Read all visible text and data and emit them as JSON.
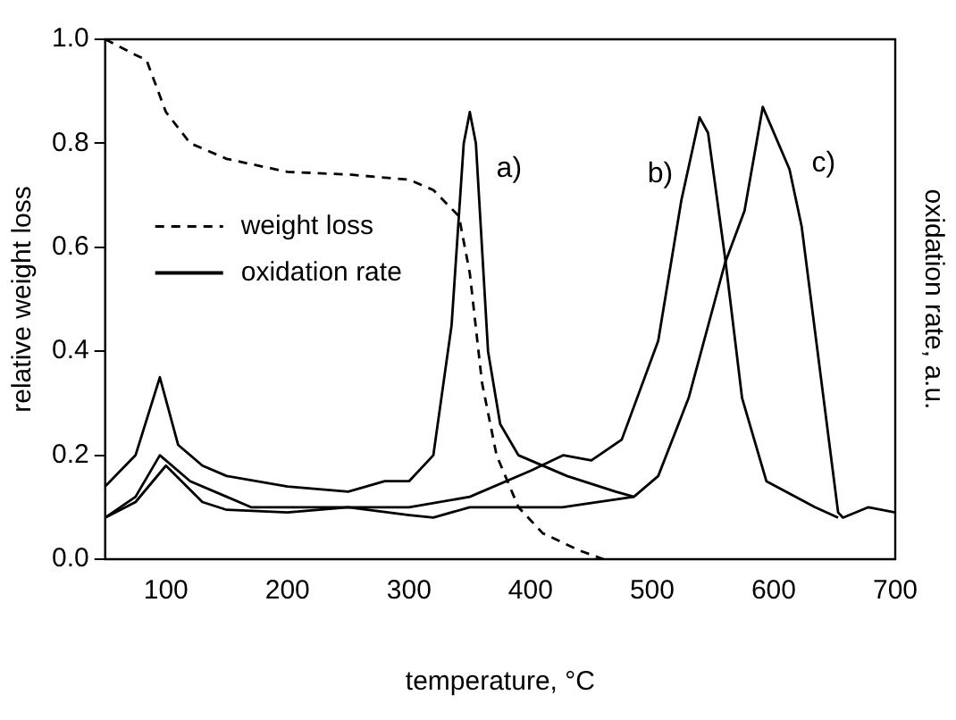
{
  "chart_data": {
    "type": "line",
    "xlabel": "temperature, °C",
    "ylabel": "relative weight loss",
    "y2label": "oxidation rate, a.u.",
    "xlim": [
      50,
      700
    ],
    "xticks": [
      100,
      200,
      300,
      400,
      500,
      600,
      700
    ],
    "ylim": [
      0,
      1.0
    ],
    "yticks": [
      {
        "value": 0,
        "label": "0.0"
      },
      0.2,
      0.4,
      0.6,
      0.8,
      {
        "value": 1,
        "label": "1.0"
      }
    ],
    "grid": false,
    "legend": "left",
    "marker": "none",
    "series": [
      {
        "name": "weight loss",
        "color": "#000000",
        "line_style": "dashed",
        "x": [
          50,
          75,
          84,
          100,
          120,
          150,
          200,
          250,
          300,
          320,
          341,
          350,
          360,
          372,
          390,
          410,
          441,
          460
        ],
        "values": [
          1.0,
          0.97,
          0.96,
          0.86,
          0.8,
          0.77,
          0.745,
          0.74,
          0.73,
          0.71,
          0.66,
          0.55,
          0.34,
          0.2,
          0.1,
          0.05,
          0.016,
          0.0
        ]
      },
      {
        "name": "oxidation rate",
        "color": "#000000",
        "line_style": "solid",
        "x": [
          50,
          75,
          95,
          110,
          130,
          150,
          200,
          250,
          280,
          300,
          320,
          335,
          345,
          350,
          355,
          365,
          375,
          390,
          430,
          470,
          485
        ],
        "values": [
          0.14,
          0.2,
          0.35,
          0.22,
          0.18,
          0.16,
          0.14,
          0.13,
          0.15,
          0.15,
          0.2,
          0.45,
          0.8,
          0.86,
          0.8,
          0.4,
          0.26,
          0.2,
          0.16,
          0.13,
          0.12
        ]
      },
      {
        "color": "#000000",
        "line_style": "solid",
        "x": [
          50,
          75,
          95,
          120,
          150,
          170,
          200,
          250,
          300,
          350,
          400,
          427,
          450,
          475,
          505,
          524,
          539,
          546,
          560,
          574,
          594,
          634,
          653
        ],
        "values": [
          0.08,
          0.12,
          0.2,
          0.15,
          0.12,
          0.1,
          0.1,
          0.1,
          0.1,
          0.12,
          0.17,
          0.2,
          0.19,
          0.23,
          0.42,
          0.69,
          0.85,
          0.82,
          0.58,
          0.31,
          0.15,
          0.1,
          0.08
        ]
      },
      {
        "color": "#000000",
        "line_style": "solid",
        "x": [
          50,
          75,
          100,
          130,
          150,
          200,
          250,
          300,
          320,
          350,
          400,
          426,
          456,
          485,
          505,
          530,
          560,
          576,
          591,
          613,
          623,
          641,
          653,
          657,
          678,
          700
        ],
        "values": [
          0.08,
          0.11,
          0.18,
          0.11,
          0.095,
          0.09,
          0.1,
          0.085,
          0.08,
          0.1,
          0.1,
          0.1,
          0.11,
          0.12,
          0.16,
          0.31,
          0.57,
          0.67,
          0.87,
          0.75,
          0.64,
          0.31,
          0.09,
          0.08,
          0.1,
          0.09
        ]
      }
    ],
    "annotations": [
      "a)",
      "b)",
      "c)"
    ]
  }
}
